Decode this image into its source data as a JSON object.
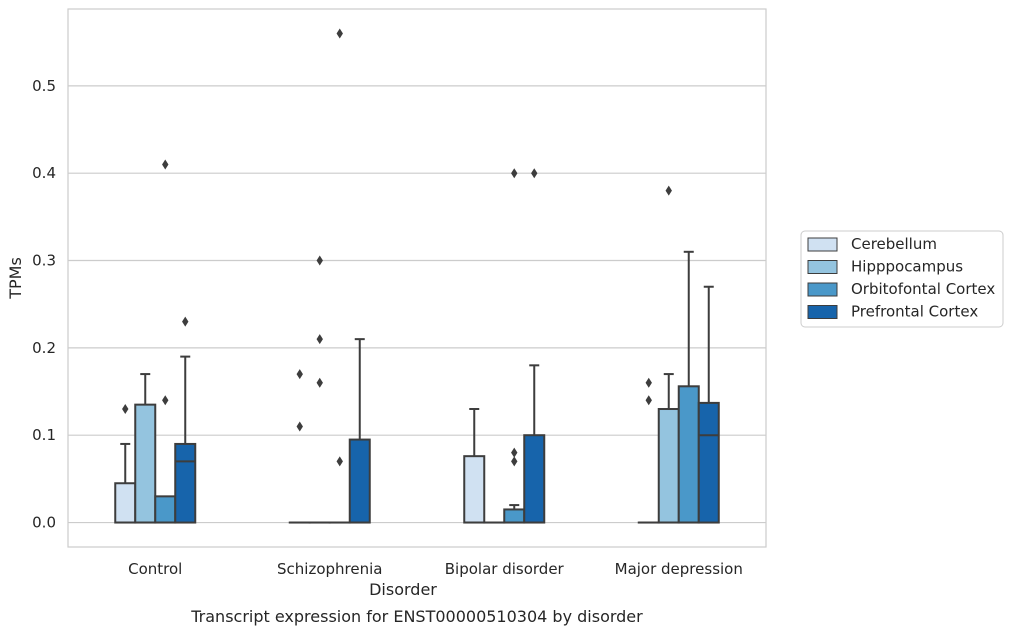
{
  "caption": "Transcript expression for ENST00000510304 by disorder",
  "chart_data": {
    "type": "box",
    "xlabel": "Disorder",
    "ylabel": "TPMs",
    "ylim": [
      -0.028,
      0.588
    ],
    "yticks": [
      0.0,
      0.1,
      0.2,
      0.3,
      0.4,
      0.5
    ],
    "ytick_labels": [
      "0.0",
      "0.1",
      "0.2",
      "0.3",
      "0.4",
      "0.5"
    ],
    "grid": "horizontal",
    "legend_position": "right",
    "categories": [
      "Control",
      "Schizophrenia",
      "Bipolar disorder",
      "Major depression"
    ],
    "series": [
      {
        "name": "Cerebellum",
        "color": "#d0e1f2",
        "boxes": [
          {
            "q1": 0.0,
            "median": 0.0,
            "q3": 0.045,
            "whisker_low": 0.0,
            "whisker_high": 0.09,
            "outliers": [
              0.13
            ]
          },
          {
            "q1": 0.0,
            "median": 0.0,
            "q3": 0.0,
            "whisker_low": 0.0,
            "whisker_high": 0.0,
            "outliers": [
              0.17,
              0.11
            ]
          },
          {
            "q1": 0.0,
            "median": 0.0,
            "q3": 0.076,
            "whisker_low": 0.0,
            "whisker_high": 0.13,
            "outliers": []
          },
          {
            "q1": 0.0,
            "median": 0.0,
            "q3": 0.0,
            "whisker_low": 0.0,
            "whisker_high": 0.0,
            "outliers": [
              0.16,
              0.14
            ]
          }
        ]
      },
      {
        "name": "Hipppocampus",
        "color": "#94c4df",
        "boxes": [
          {
            "q1": 0.0,
            "median": 0.0,
            "q3": 0.135,
            "whisker_low": 0.0,
            "whisker_high": 0.17,
            "outliers": []
          },
          {
            "q1": 0.0,
            "median": 0.0,
            "q3": 0.0,
            "whisker_low": 0.0,
            "whisker_high": 0.0,
            "outliers": [
              0.3,
              0.21,
              0.16
            ]
          },
          {
            "q1": 0.0,
            "median": 0.0,
            "q3": 0.0,
            "whisker_low": 0.0,
            "whisker_high": 0.0,
            "outliers": []
          },
          {
            "q1": 0.0,
            "median": 0.0,
            "q3": 0.13,
            "whisker_low": 0.0,
            "whisker_high": 0.17,
            "outliers": [
              0.38
            ]
          }
        ]
      },
      {
        "name": "Orbitofontal Cortex",
        "color": "#4a98c9",
        "boxes": [
          {
            "q1": 0.0,
            "median": 0.0,
            "q3": 0.03,
            "whisker_low": 0.0,
            "whisker_high": 0.03,
            "outliers": [
              0.41,
              0.14
            ]
          },
          {
            "q1": 0.0,
            "median": 0.0,
            "q3": 0.0,
            "whisker_low": 0.0,
            "whisker_high": 0.0,
            "outliers": [
              0.56,
              0.07
            ]
          },
          {
            "q1": 0.0,
            "median": 0.0,
            "q3": 0.015,
            "whisker_low": 0.0,
            "whisker_high": 0.02,
            "outliers": [
              0.4,
              0.08,
              0.07
            ]
          },
          {
            "q1": 0.0,
            "median": 0.0,
            "q3": 0.156,
            "whisker_low": 0.0,
            "whisker_high": 0.31,
            "outliers": []
          }
        ]
      },
      {
        "name": "Prefrontal Cortex",
        "color": "#1764ab",
        "boxes": [
          {
            "q1": 0.0,
            "median": 0.07,
            "q3": 0.09,
            "whisker_low": 0.0,
            "whisker_high": 0.19,
            "outliers": [
              0.23
            ]
          },
          {
            "q1": 0.0,
            "median": 0.0,
            "q3": 0.095,
            "whisker_low": 0.0,
            "whisker_high": 0.21,
            "outliers": []
          },
          {
            "q1": 0.0,
            "median": 0.0,
            "q3": 0.1,
            "whisker_low": 0.0,
            "whisker_high": 0.18,
            "outliers": [
              0.4
            ]
          },
          {
            "q1": 0.0,
            "median": 0.1,
            "q3": 0.137,
            "whisker_low": 0.0,
            "whisker_high": 0.27,
            "outliers": []
          }
        ]
      }
    ]
  }
}
